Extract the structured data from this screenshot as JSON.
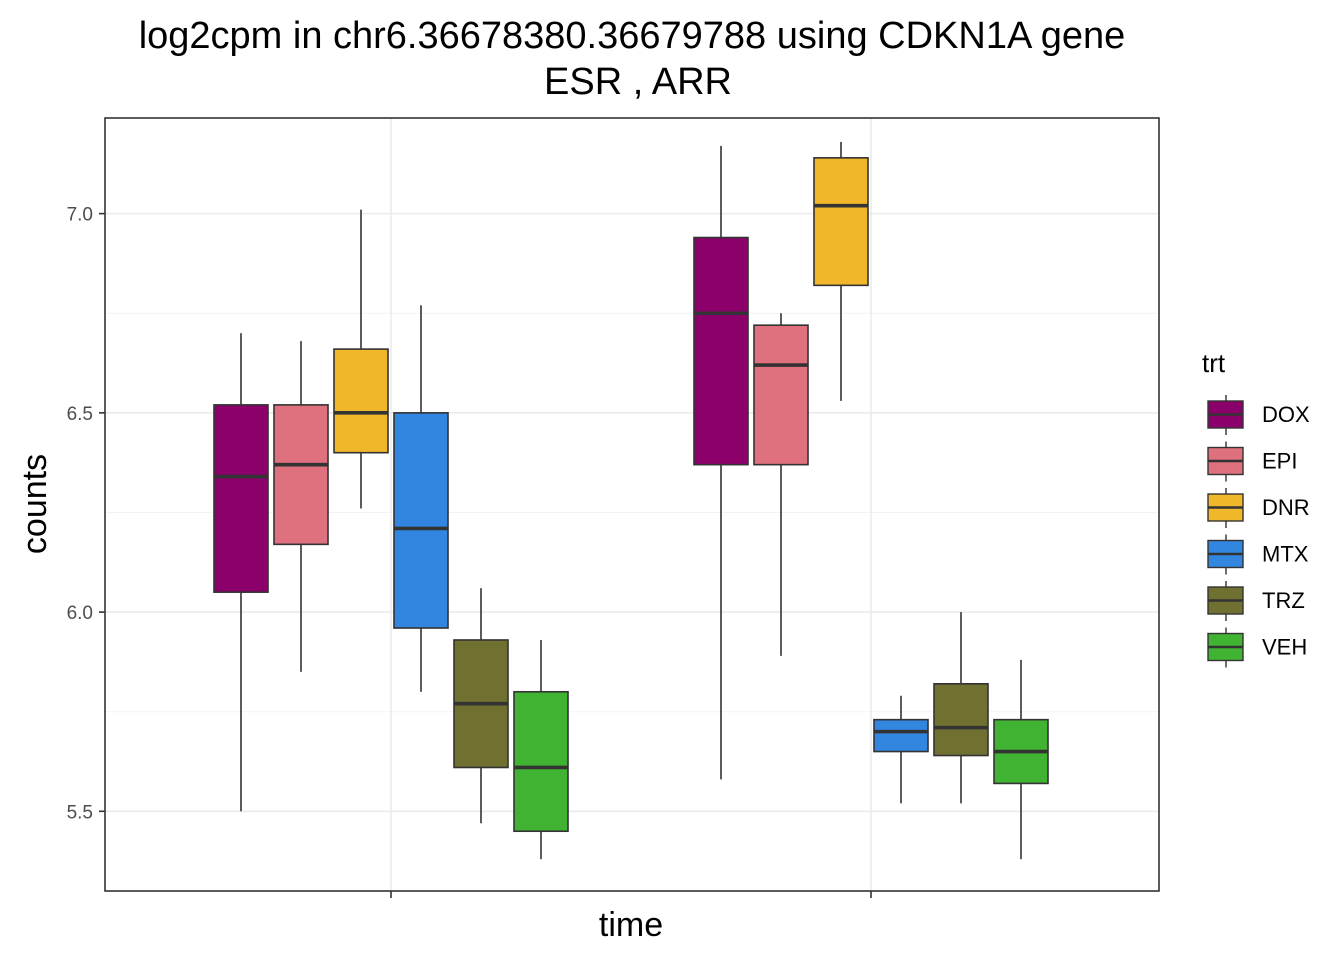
{
  "chart_data": {
    "type": "boxplot",
    "title_line1": "log2cpm in  chr6.36678380.36679788  using  CDKN1A  gene",
    "title_line2": "ESR ,  ARR",
    "xlabel": "time",
    "ylabel": "counts",
    "ylim": [
      5.3,
      7.24
    ],
    "yticks": [
      5.5,
      6.0,
      6.5,
      7.0
    ],
    "ytick_labels": [
      "5.5",
      "6.0",
      "6.5",
      "7.0"
    ],
    "x_groups": [
      "",
      ""
    ],
    "grid": true,
    "legend": {
      "title": "trt",
      "position": "right",
      "entries": [
        {
          "label": "DOX",
          "color": "#8B006B"
        },
        {
          "label": "EPI",
          "color": "#DF707E"
        },
        {
          "label": "DNR",
          "color": "#F1B72B"
        },
        {
          "label": "MTX",
          "color": "#3386E0"
        },
        {
          "label": "TRZ",
          "color": "#707031"
        },
        {
          "label": "VEH",
          "color": "#41B333"
        }
      ]
    },
    "series": [
      {
        "name": "DOX",
        "boxes": [
          {
            "group": 0,
            "min": 5.5,
            "q1": 6.05,
            "median": 6.34,
            "q3": 6.52,
            "max": 6.7
          },
          {
            "group": 1,
            "min": 5.58,
            "q1": 6.37,
            "median": 6.75,
            "q3": 6.94,
            "max": 7.17
          }
        ]
      },
      {
        "name": "EPI",
        "boxes": [
          {
            "group": 0,
            "min": 5.85,
            "q1": 6.17,
            "median": 6.37,
            "q3": 6.52,
            "max": 6.68
          },
          {
            "group": 1,
            "min": 5.89,
            "q1": 6.37,
            "median": 6.62,
            "q3": 6.72,
            "max": 6.75
          }
        ]
      },
      {
        "name": "DNR",
        "boxes": [
          {
            "group": 0,
            "min": 6.26,
            "q1": 6.4,
            "median": 6.5,
            "q3": 6.66,
            "max": 7.01
          },
          {
            "group": 1,
            "min": 6.53,
            "q1": 6.82,
            "median": 7.02,
            "q3": 7.14,
            "max": 7.18
          }
        ]
      },
      {
        "name": "MTX",
        "boxes": [
          {
            "group": 0,
            "min": 5.8,
            "q1": 5.96,
            "median": 6.21,
            "q3": 6.5,
            "max": 6.77
          },
          {
            "group": 1,
            "min": 5.52,
            "q1": 5.65,
            "median": 5.7,
            "q3": 5.73,
            "max": 5.79
          }
        ]
      },
      {
        "name": "TRZ",
        "boxes": [
          {
            "group": 0,
            "min": 5.47,
            "q1": 5.61,
            "median": 5.77,
            "q3": 5.93,
            "max": 6.06
          },
          {
            "group": 1,
            "min": 5.52,
            "q1": 5.64,
            "median": 5.71,
            "q3": 5.82,
            "max": 6.0
          }
        ]
      },
      {
        "name": "VEH",
        "boxes": [
          {
            "group": 0,
            "min": 5.38,
            "q1": 5.45,
            "median": 5.61,
            "q3": 5.8,
            "max": 5.93
          },
          {
            "group": 1,
            "min": 5.38,
            "q1": 5.57,
            "median": 5.65,
            "q3": 5.73,
            "max": 5.88
          }
        ]
      }
    ]
  }
}
